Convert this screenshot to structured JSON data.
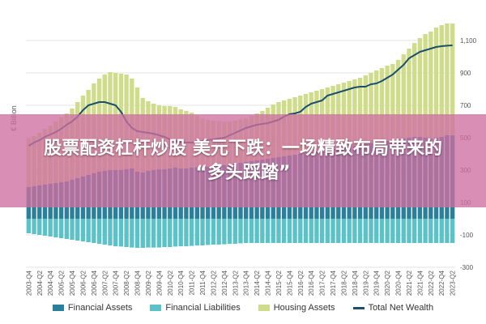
{
  "headline": {
    "line1": "股票配资杠杆炒股 美元下跌：一场精致布局带来的",
    "line2": "“多头踩踏”"
  },
  "chart_data": {
    "type": "bar",
    "ylabel": "€ Billion",
    "ylim": [
      -300,
      1200
    ],
    "yticks": [
      -300,
      -100,
      100,
      300,
      500,
      700,
      900,
      1100
    ],
    "ytick_labels": [
      "-300",
      "-100",
      "100",
      "300",
      "500",
      "700",
      "900",
      "1,100"
    ],
    "grid": true,
    "legend_position": "bottom",
    "start_year": 2003,
    "categories": [
      "2003-Q4",
      "2004-Q1",
      "2004-Q2",
      "2004-Q3",
      "2004-Q4",
      "2005-Q1",
      "2005-Q2",
      "2005-Q3",
      "2005-Q4",
      "2006-Q1",
      "2006-Q2",
      "2006-Q3",
      "2006-Q4",
      "2007-Q1",
      "2007-Q2",
      "2007-Q3",
      "2007-Q4",
      "2008-Q1",
      "2008-Q2",
      "2008-Q3",
      "2008-Q4",
      "2009-Q1",
      "2009-Q2",
      "2009-Q3",
      "2009-Q4",
      "2010-Q1",
      "2010-Q2",
      "2010-Q3",
      "2010-Q4",
      "2011-Q1",
      "2011-Q2",
      "2011-Q3",
      "2011-Q4",
      "2012-Q1",
      "2012-Q2",
      "2012-Q3",
      "2012-Q4",
      "2013-Q1",
      "2013-Q2",
      "2013-Q3",
      "2013-Q4",
      "2014-Q1",
      "2014-Q2",
      "2014-Q3",
      "2014-Q4",
      "2015-Q1",
      "2015-Q2",
      "2015-Q3",
      "2015-Q4",
      "2016-Q1",
      "2016-Q2",
      "2016-Q3",
      "2016-Q4",
      "2017-Q1",
      "2017-Q2",
      "2017-Q3",
      "2017-Q4",
      "2018-Q1",
      "2018-Q2",
      "2018-Q3",
      "2018-Q4",
      "2019-Q1",
      "2019-Q2",
      "2019-Q3",
      "2019-Q4",
      "2020-Q1",
      "2020-Q2",
      "2020-Q3",
      "2020-Q4",
      "2021-Q1",
      "2021-Q2",
      "2021-Q3",
      "2021-Q4",
      "2022-Q1",
      "2022-Q2",
      "2022-Q3",
      "2022-Q4",
      "2023-Q1",
      "2023-Q2"
    ],
    "series": [
      {
        "name": "Financial Assets",
        "kind": "bar",
        "color": "#2a7f9a",
        "values": [
          195,
          200,
          205,
          210,
          215,
          220,
          225,
          230,
          240,
          250,
          260,
          270,
          280,
          290,
          295,
          300,
          300,
          300,
          305,
          310,
          290,
          285,
          295,
          300,
          305,
          305,
          310,
          315,
          310,
          310,
          315,
          318,
          318,
          320,
          325,
          328,
          330,
          335,
          340,
          345,
          350,
          355,
          360,
          365,
          370,
          375,
          380,
          385,
          390,
          395,
          400,
          405,
          410,
          415,
          420,
          425,
          430,
          435,
          440,
          445,
          450,
          455,
          460,
          465,
          470,
          475,
          480,
          485,
          490,
          495,
          500,
          505,
          505,
          500,
          495,
          500,
          505,
          515,
          515
        ]
      },
      {
        "name": "Financial Liabilities",
        "kind": "bar",
        "color": "#5bc3c8",
        "values": [
          -90,
          -95,
          -100,
          -105,
          -110,
          -115,
          -120,
          -125,
          -130,
          -135,
          -140,
          -145,
          -150,
          -155,
          -160,
          -165,
          -170,
          -172,
          -175,
          -178,
          -180,
          -180,
          -178,
          -178,
          -178,
          -175,
          -175,
          -172,
          -170,
          -170,
          -168,
          -165,
          -165,
          -162,
          -160,
          -160,
          -158,
          -155,
          -155,
          -152,
          -150,
          -150,
          -150,
          -150,
          -150,
          -150,
          -150,
          -150,
          -150,
          -150,
          -150,
          -150,
          -150,
          -150,
          -150,
          -150,
          -150,
          -150,
          -150,
          -150,
          -150,
          -150,
          -150,
          -150,
          -150,
          -150,
          -150,
          -150,
          -150,
          -150,
          -150,
          -150,
          -150,
          -150,
          -150,
          -150,
          -150,
          -150,
          -150
        ]
      },
      {
        "name": "Housing Assets",
        "kind": "bar",
        "color": "#cfdd8a",
        "values": [
          300,
          310,
          325,
          345,
          360,
          380,
          400,
          420,
          440,
          470,
          500,
          525,
          555,
          575,
          595,
          605,
          600,
          595,
          585,
          555,
          520,
          460,
          430,
          410,
          395,
          390,
          385,
          375,
          365,
          355,
          340,
          320,
          300,
          290,
          280,
          275,
          270,
          265,
          265,
          268,
          270,
          280,
          290,
          300,
          315,
          330,
          340,
          345,
          350,
          355,
          360,
          365,
          370,
          375,
          380,
          385,
          390,
          395,
          400,
          405,
          410,
          415,
          425,
          435,
          445,
          455,
          465,
          470,
          490,
          520,
          550,
          580,
          610,
          640,
          660,
          680,
          690,
          690,
          690
        ]
      },
      {
        "name": "Total Net Wealth",
        "kind": "line",
        "color": "#1c4e6e",
        "values": [
          450,
          470,
          485,
          505,
          520,
          535,
          555,
          580,
          600,
          630,
          670,
          700,
          710,
          720,
          720,
          710,
          700,
          660,
          600,
          560,
          540,
          535,
          530,
          525,
          515,
          505,
          490,
          480,
          470,
          470,
          470,
          475,
          480,
          485,
          490,
          495,
          500,
          515,
          530,
          545,
          560,
          570,
          580,
          585,
          590,
          600,
          610,
          630,
          645,
          650,
          660,
          690,
          710,
          720,
          730,
          760,
          770,
          780,
          790,
          800,
          810,
          815,
          815,
          830,
          835,
          850,
          870,
          890,
          920,
          950,
          990,
          1010,
          1030,
          1040,
          1050,
          1060,
          1065,
          1068,
          1070
        ]
      }
    ]
  }
}
